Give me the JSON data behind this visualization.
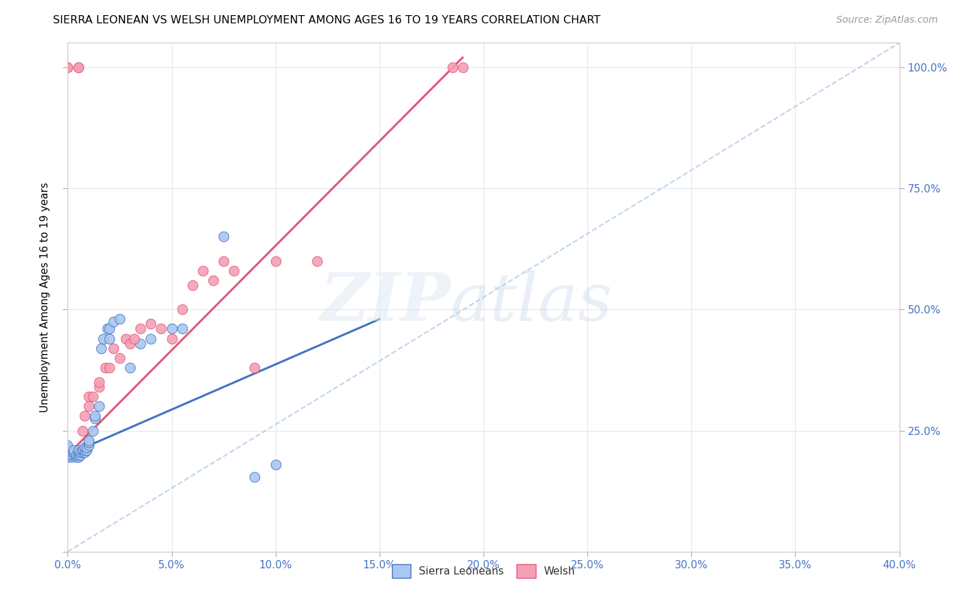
{
  "title": "SIERRA LEONEAN VS WELSH UNEMPLOYMENT AMONG AGES 16 TO 19 YEARS CORRELATION CHART",
  "source": "Source: ZipAtlas.com",
  "ylabel": "Unemployment Among Ages 16 to 19 years",
  "x_tick_labels": [
    "0.0%",
    "5.0%",
    "10.0%",
    "15.0%",
    "20.0%",
    "25.0%",
    "30.0%",
    "35.0%",
    "40.0%"
  ],
  "y_tick_labels_right": [
    "25.0%",
    "50.0%",
    "75.0%",
    "100.0%"
  ],
  "x_min": 0.0,
  "x_max": 0.4,
  "y_min": 0.0,
  "y_max": 1.05,
  "legend_bottom_label1": "Sierra Leoneans",
  "legend_bottom_label2": "Welsh",
  "color_blue": "#a8c8f0",
  "color_pink": "#f4a0b5",
  "color_blue_dark": "#4472c4",
  "color_pink_dark": "#e05878",
  "sl_x": [
    0.0,
    0.0,
    0.0,
    0.0,
    0.0,
    0.0,
    0.002,
    0.002,
    0.003,
    0.003,
    0.003,
    0.004,
    0.004,
    0.005,
    0.005,
    0.005,
    0.005,
    0.006,
    0.006,
    0.007,
    0.007,
    0.008,
    0.008,
    0.008,
    0.009,
    0.009,
    0.01,
    0.01,
    0.01,
    0.012,
    0.013,
    0.013,
    0.015,
    0.016,
    0.017,
    0.019,
    0.02,
    0.02,
    0.022,
    0.025,
    0.03,
    0.035,
    0.04,
    0.05,
    0.055,
    0.075,
    0.09,
    0.1
  ],
  "sl_y": [
    0.195,
    0.2,
    0.205,
    0.21,
    0.215,
    0.22,
    0.195,
    0.2,
    0.2,
    0.205,
    0.21,
    0.195,
    0.2,
    0.195,
    0.2,
    0.205,
    0.21,
    0.2,
    0.205,
    0.205,
    0.21,
    0.205,
    0.21,
    0.215,
    0.21,
    0.215,
    0.22,
    0.225,
    0.23,
    0.25,
    0.275,
    0.28,
    0.3,
    0.42,
    0.44,
    0.46,
    0.44,
    0.46,
    0.475,
    0.48,
    0.38,
    0.43,
    0.44,
    0.46,
    0.46,
    0.65,
    0.155,
    0.18
  ],
  "welsh_x": [
    0.0,
    0.0,
    0.005,
    0.005,
    0.007,
    0.008,
    0.01,
    0.01,
    0.012,
    0.015,
    0.015,
    0.018,
    0.02,
    0.022,
    0.025,
    0.028,
    0.03,
    0.032,
    0.035,
    0.04,
    0.045,
    0.05,
    0.055,
    0.06,
    0.065,
    0.07,
    0.075,
    0.08,
    0.09,
    0.1,
    0.12,
    0.185,
    0.19
  ],
  "welsh_y": [
    1.0,
    1.0,
    1.0,
    1.0,
    0.25,
    0.28,
    0.3,
    0.32,
    0.32,
    0.34,
    0.35,
    0.38,
    0.38,
    0.42,
    0.4,
    0.44,
    0.43,
    0.44,
    0.46,
    0.47,
    0.46,
    0.44,
    0.5,
    0.55,
    0.58,
    0.56,
    0.6,
    0.58,
    0.38,
    0.6,
    0.6,
    1.0,
    1.0
  ],
  "sl_line_x": [
    0.0,
    0.15
  ],
  "sl_line_y": [
    0.2,
    0.48
  ],
  "welsh_line_x": [
    0.0,
    0.19
  ],
  "welsh_line_y": [
    0.2,
    1.02
  ],
  "ref_line_x": [
    0.0,
    0.4
  ],
  "ref_line_y": [
    0.0,
    1.05
  ]
}
